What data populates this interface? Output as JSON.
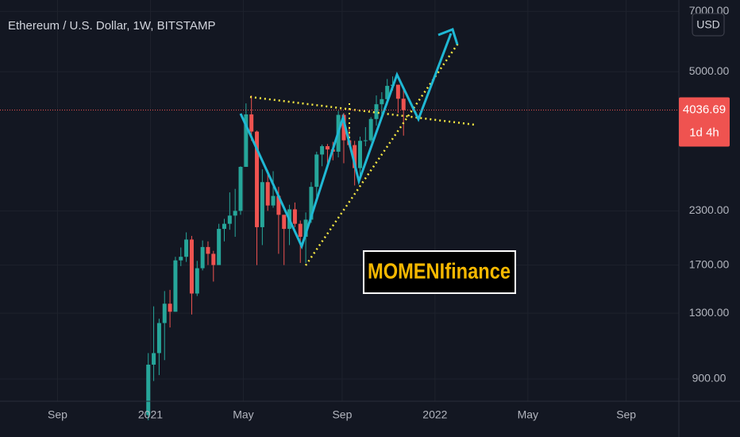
{
  "chart_data": {
    "type": "candlestick",
    "title": "Ethereum / U.S. Dollar, 1W, BITSTAMP",
    "currency": "USD",
    "countdown": "1d 4h",
    "annotation": "MOMENIfinance",
    "log": true,
    "grid": true,
    "up_color": "#26a69a",
    "down_color": "#ef5350",
    "categories": [
      null,
      null,
      null,
      null,
      null,
      null,
      null,
      null,
      null,
      null,
      null,
      null,
      null,
      null,
      null,
      null,
      null,
      null,
      null,
      null,
      null,
      null,
      null,
      null,
      null,
      null,
      null,
      null,
      null,
      null,
      null,
      null,
      null,
      null,
      null,
      null,
      null,
      null,
      null,
      null,
      null,
      null,
      null,
      null,
      null,
      null,
      null,
      null
    ],
    "open": [
      736,
      975,
      1040,
      1230,
      1370,
      1310,
      1745,
      1780,
      1960,
      1450,
      1670,
      1880,
      1810,
      1700,
      2080,
      2140,
      2240,
      2300,
      2940,
      3940,
      3580,
      2100,
      2700,
      2370,
      2500,
      2250,
      2080,
      2320,
      2140,
      1990,
      2190,
      2630,
      3150,
      3300,
      3240,
      3200,
      3930,
      3410,
      3320,
      2920,
      3400,
      3410,
      3840,
      4170,
      4290,
      4620,
      4650,
      4300
    ],
    "high": [
      1040,
      1350,
      1260,
      1470,
      1480,
      1780,
      1875,
      2040,
      2000,
      1740,
      1950,
      1940,
      1840,
      2140,
      2200,
      2550,
      2600,
      2950,
      4190,
      4380,
      3600,
      2900,
      2890,
      2870,
      2630,
      2250,
      2380,
      2410,
      2180,
      2280,
      2700,
      3200,
      3330,
      3340,
      3380,
      4020,
      3970,
      3680,
      3400,
      3480,
      3670,
      3880,
      4380,
      4460,
      4800,
      4870,
      4650,
      4550
    ],
    "low": [
      715,
      890,
      920,
      1000,
      1200,
      1310,
      1690,
      1730,
      1290,
      1430,
      1650,
      1700,
      1550,
      1700,
      1940,
      2070,
      1990,
      2250,
      2940,
      3400,
      1700,
      1900,
      2300,
      2340,
      1810,
      1700,
      1900,
      2100,
      1720,
      1720,
      2150,
      2450,
      2950,
      2980,
      3050,
      3100,
      3000,
      3280,
      2650,
      2730,
      3300,
      3380,
      3700,
      3900,
      4150,
      4500,
      3970,
      3500
    ],
    "close": [
      975,
      1040,
      1230,
      1370,
      1310,
      1745,
      1780,
      1960,
      1450,
      1670,
      1880,
      1810,
      1700,
      2080,
      2140,
      2240,
      2300,
      2940,
      3940,
      3580,
      2100,
      2700,
      2370,
      2500,
      2250,
      2080,
      2320,
      2140,
      1990,
      2190,
      2630,
      3150,
      3300,
      3240,
      3200,
      3930,
      3410,
      3320,
      2920,
      3400,
      3410,
      3840,
      4170,
      4290,
      4620,
      4650,
      4300,
      4036.69
    ],
    "xlim": [
      -27.3,
      97.7
    ],
    "xticks": [
      {
        "value": -16.7,
        "label": "Sep"
      },
      {
        "value": 0.4,
        "label": "2021"
      },
      {
        "value": 17.5,
        "label": "May"
      },
      {
        "value": 35.7,
        "label": "Sep"
      },
      {
        "value": 52.8,
        "label": "2022"
      },
      {
        "value": 69.9,
        "label": "May"
      },
      {
        "value": 88.0,
        "label": "Sep"
      }
    ],
    "ylim": [
      795,
      7460
    ],
    "yticks": [
      {
        "value": 900,
        "label": "900.00"
      },
      {
        "value": 1300,
        "label": "1300.00"
      },
      {
        "value": 1700,
        "label": "1700.00"
      },
      {
        "value": 2300,
        "label": "2300.00"
      },
      {
        "value": 5000,
        "label": "5000.00"
      },
      {
        "value": 7000,
        "label": "7000.00"
      }
    ]
  }
}
